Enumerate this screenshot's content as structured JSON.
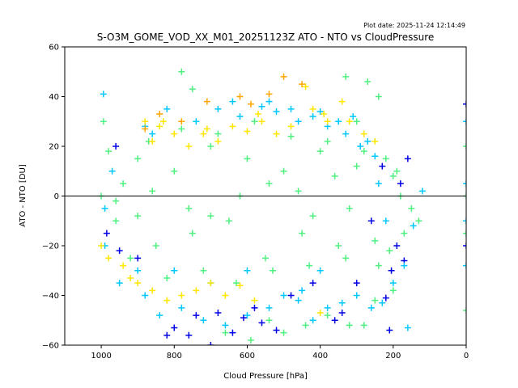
{
  "chart_data": {
    "type": "scatter",
    "title": "S-O3M_GOME_VOD_XX_M01_20251123Z ATO - NTO vs CloudPressure",
    "plot_date": "Plot date: 2025-11-24 12:14:49",
    "xlabel": "Cloud Pressure [hPa]",
    "ylabel": "ATO - NTO [DU]",
    "xlim": [
      1100,
      0
    ],
    "ylim": [
      -60,
      60
    ],
    "xticks": [
      1000,
      800,
      600,
      400,
      200,
      0
    ],
    "yticks": [
      -60,
      -40,
      -20,
      0,
      20,
      40,
      60
    ],
    "hline": 0,
    "marker": "+",
    "legend": "none",
    "grid": false,
    "series": [
      {
        "name": "dark blue",
        "color": "#0000e6",
        "points": [
          [
            800,
            -53
          ],
          [
            760,
            -56
          ],
          [
            700,
            -60
          ],
          [
            640,
            -55
          ],
          [
            560,
            -51
          ],
          [
            520,
            -54
          ],
          [
            210,
            -54
          ],
          [
            820,
            -56
          ],
          [
            740,
            -48
          ],
          [
            480,
            -40
          ],
          [
            340,
            -47
          ],
          [
            420,
            -35
          ],
          [
            900,
            -25
          ],
          [
            950,
            -22
          ],
          [
            260,
            -10
          ],
          [
            230,
            12
          ],
          [
            170,
            -26
          ],
          [
            680,
            -47
          ],
          [
            360,
            -50
          ],
          [
            220,
            -41
          ],
          [
            610,
            -49
          ],
          [
            580,
            -45
          ],
          [
            300,
            -35
          ],
          [
            190,
            -20
          ],
          [
            160,
            15
          ],
          [
            180,
            5
          ],
          [
            205,
            -30
          ],
          [
            985,
            -15
          ],
          [
            960,
            20
          ],
          [
            0,
            37
          ],
          [
            0,
            -20
          ]
        ]
      },
      {
        "name": "cyan",
        "color": "#00c8ff",
        "points": [
          [
            994,
            41
          ],
          [
            950,
            -35
          ],
          [
            880,
            -40
          ],
          [
            840,
            -48
          ],
          [
            780,
            -45
          ],
          [
            720,
            -50
          ],
          [
            660,
            -52
          ],
          [
            600,
            -48
          ],
          [
            540,
            -45
          ],
          [
            500,
            -40
          ],
          [
            460,
            -42
          ],
          [
            420,
            -50
          ],
          [
            380,
            -45
          ],
          [
            340,
            -43
          ],
          [
            300,
            -40
          ],
          [
            260,
            -45
          ],
          [
            230,
            -43
          ],
          [
            200,
            -35
          ],
          [
            170,
            -28
          ],
          [
            160,
            -53
          ],
          [
            740,
            30
          ],
          [
            680,
            35
          ],
          [
            620,
            32
          ],
          [
            560,
            36
          ],
          [
            520,
            34
          ],
          [
            460,
            30
          ],
          [
            420,
            32
          ],
          [
            380,
            28
          ],
          [
            330,
            25
          ],
          [
            290,
            20
          ],
          [
            250,
            16
          ],
          [
            990,
            -5
          ],
          [
            970,
            10
          ],
          [
            900,
            -30
          ],
          [
            860,
            25
          ],
          [
            820,
            35
          ],
          [
            640,
            38
          ],
          [
            540,
            38
          ],
          [
            480,
            35
          ],
          [
            400,
            34
          ],
          [
            350,
            30
          ],
          [
            310,
            32
          ],
          [
            270,
            22
          ],
          [
            0,
            30
          ],
          [
            0,
            -10
          ],
          [
            0,
            5
          ],
          [
            0,
            -28
          ],
          [
            120,
            2
          ],
          [
            145,
            -12
          ],
          [
            600,
            -30
          ],
          [
            700,
            -35
          ],
          [
            800,
            -30
          ],
          [
            880,
            28
          ],
          [
            990,
            -20
          ],
          [
            400,
            -30
          ],
          [
            450,
            -38
          ],
          [
            220,
            -10
          ],
          [
            240,
            5
          ]
        ]
      },
      {
        "name": "green",
        "color": "#50f080",
        "points": [
          [
            994,
            30
          ],
          [
            780,
            50
          ],
          [
            750,
            43
          ],
          [
            270,
            46
          ],
          [
            330,
            48
          ],
          [
            590,
            -58
          ],
          [
            500,
            -55
          ],
          [
            320,
            -52
          ],
          [
            280,
            -52
          ],
          [
            250,
            -42
          ],
          [
            200,
            -38
          ],
          [
            440,
            -52
          ],
          [
            660,
            -55
          ],
          [
            540,
            -50
          ],
          [
            380,
            -48
          ],
          [
            980,
            18
          ],
          [
            960,
            -10
          ],
          [
            940,
            5
          ],
          [
            900,
            15
          ],
          [
            850,
            -20
          ],
          [
            800,
            10
          ],
          [
            750,
            -15
          ],
          [
            700,
            20
          ],
          [
            650,
            -10
          ],
          [
            600,
            15
          ],
          [
            550,
            -25
          ],
          [
            500,
            10
          ],
          [
            450,
            -15
          ],
          [
            400,
            18
          ],
          [
            350,
            -20
          ],
          [
            300,
            12
          ],
          [
            250,
            -18
          ],
          [
            200,
            8
          ],
          [
            170,
            -15
          ],
          [
            150,
            -5
          ],
          [
            130,
            -10
          ],
          [
            1000,
            0
          ],
          [
            920,
            -25
          ],
          [
            870,
            22
          ],
          [
            820,
            -33
          ],
          [
            780,
            27
          ],
          [
            720,
            -30
          ],
          [
            680,
            25
          ],
          [
            630,
            -35
          ],
          [
            580,
            30
          ],
          [
            530,
            -30
          ],
          [
            480,
            24
          ],
          [
            430,
            -28
          ],
          [
            380,
            22
          ],
          [
            330,
            -25
          ],
          [
            280,
            18
          ],
          [
            240,
            -28
          ],
          [
            210,
            -22
          ],
          [
            190,
            10
          ],
          [
            0,
            -46
          ],
          [
            0,
            0
          ],
          [
            0,
            20
          ],
          [
            0,
            -15
          ],
          [
            760,
            -5
          ],
          [
            620,
            0
          ],
          [
            460,
            2
          ],
          [
            320,
            -5
          ],
          [
            180,
            0
          ],
          [
            860,
            2
          ],
          [
            540,
            5
          ],
          [
            420,
            -8
          ],
          [
            360,
            8
          ],
          [
            700,
            -8
          ],
          [
            900,
            -8
          ],
          [
            960,
            -2
          ],
          [
            220,
            15
          ],
          [
            300,
            30
          ],
          [
            240,
            40
          ]
        ]
      },
      {
        "name": "yellow",
        "color": "#ffe600",
        "points": [
          [
            880,
            30
          ],
          [
            860,
            22
          ],
          [
            840,
            28
          ],
          [
            800,
            25
          ],
          [
            760,
            20
          ],
          [
            720,
            25
          ],
          [
            680,
            22
          ],
          [
            640,
            28
          ],
          [
            600,
            26
          ],
          [
            560,
            30
          ],
          [
            520,
            25
          ],
          [
            480,
            28
          ],
          [
            440,
            44
          ],
          [
            420,
            35
          ],
          [
            380,
            30
          ],
          [
            340,
            38
          ],
          [
            320,
            30
          ],
          [
            280,
            25
          ],
          [
            900,
            -35
          ],
          [
            860,
            -38
          ],
          [
            820,
            -42
          ],
          [
            780,
            -40
          ],
          [
            740,
            -38
          ],
          [
            700,
            -35
          ],
          [
            660,
            -40
          ],
          [
            620,
            -36
          ],
          [
            580,
            -42
          ],
          [
            400,
            -47
          ],
          [
            920,
            -33
          ],
          [
            940,
            -28
          ],
          [
            980,
            -25
          ],
          [
            1000,
            -20
          ],
          [
            830,
            30
          ],
          [
            570,
            33
          ],
          [
            710,
            27
          ],
          [
            390,
            33
          ],
          [
            250,
            22
          ]
        ]
      },
      {
        "name": "orange",
        "color": "#ffa500",
        "points": [
          [
            710,
            38
          ],
          [
            620,
            40
          ],
          [
            500,
            48
          ],
          [
            450,
            45
          ],
          [
            540,
            41
          ],
          [
            840,
            33
          ],
          [
            780,
            30
          ],
          [
            590,
            37
          ],
          [
            880,
            27
          ]
        ]
      }
    ]
  }
}
